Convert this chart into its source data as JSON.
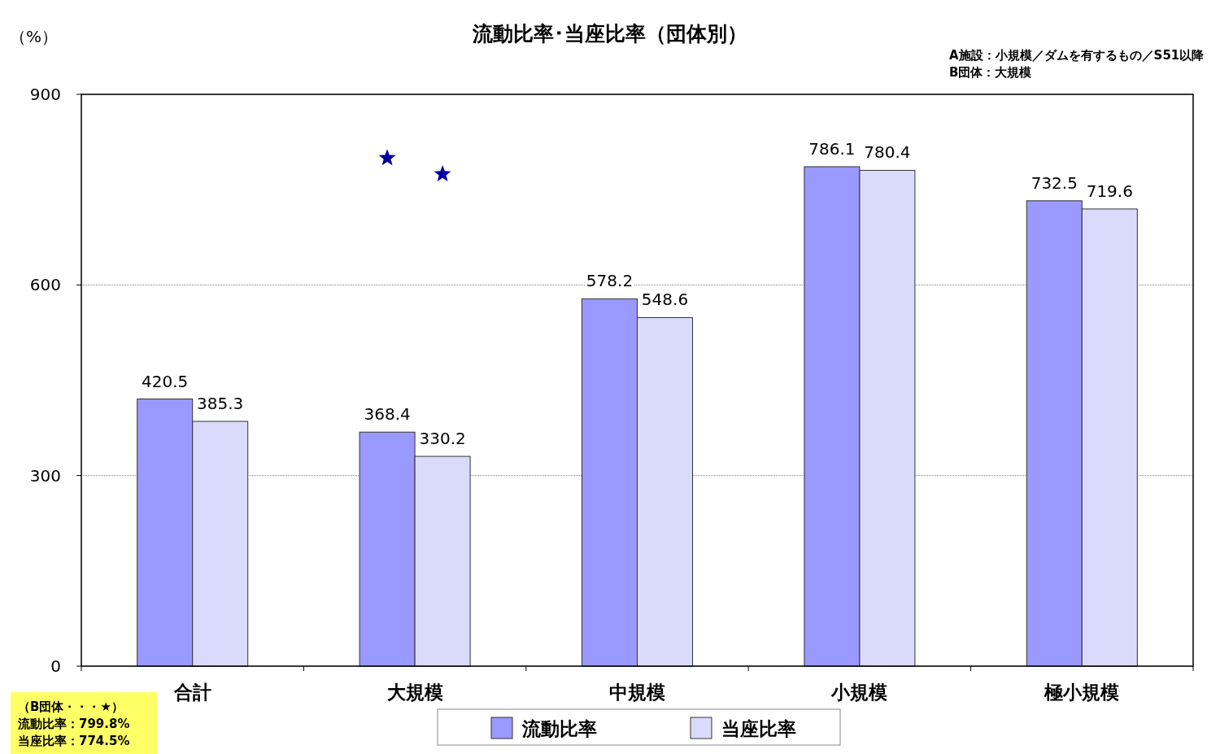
{
  "chart_data": {
    "type": "bar",
    "title": "流動比率･当座比率（団体別）",
    "ylabel": "（%）",
    "annotations": [
      "A施設：小規模／ダムを有するもの／S51以降",
      "B団体：大規模",
      "（B団体・・・★）",
      "流動比率：799.8%",
      "当座比率：774.5%"
    ],
    "categories": [
      "合計",
      "大規模",
      "中規模",
      "小規模",
      "極小規模"
    ],
    "series": [
      {
        "name": "流動比率",
        "color": "#9999ff",
        "values": [
          420.5,
          368.4,
          578.2,
          786.1,
          732.5
        ]
      },
      {
        "name": "当座比率",
        "color": "#dadafc",
        "values": [
          385.3,
          330.2,
          548.6,
          780.4,
          719.6
        ]
      },
      {
        "type": "scatter",
        "marker": "star",
        "color": "#0000a0",
        "x": [
          "大規模"
        ],
        "values": [
          799.8
        ],
        "value_labels": [
          null
        ]
      },
      {
        "type": "scatter",
        "marker": "star",
        "color": "#0000a0",
        "x": [
          "大規模"
        ],
        "values": [
          774.5
        ],
        "value_labels": [
          null
        ]
      }
    ],
    "ylim": [
      0,
      900
    ],
    "yticks": [
      0,
      300,
      600,
      900
    ],
    "grid": "y",
    "legend": "bottom",
    "data_labels": true
  }
}
